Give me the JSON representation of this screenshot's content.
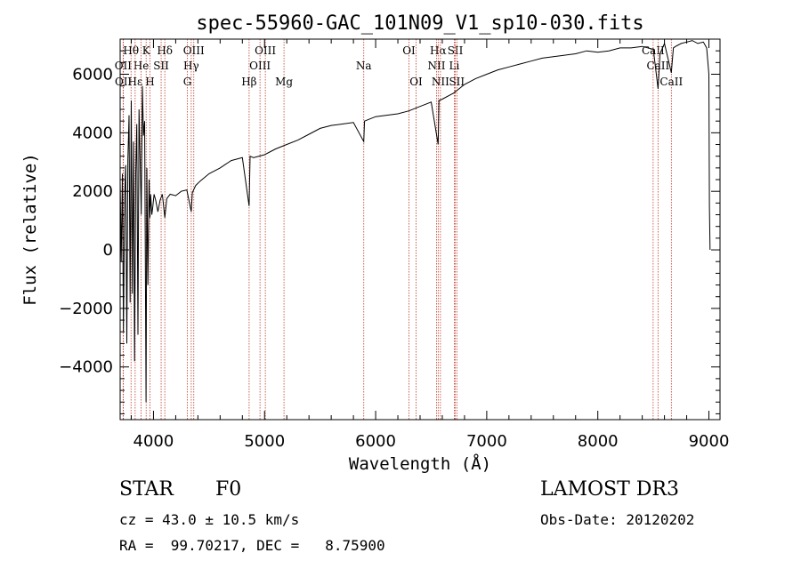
{
  "chart_data": {
    "type": "line",
    "title": "spec-55960-GAC_101N09_V1_sp10-030.fits",
    "xlabel": "Wavelength (Å)",
    "ylabel": "Flux (relative)",
    "xlim": [
      3700,
      9100
    ],
    "ylim": [
      -5800,
      7200
    ],
    "xticks": [
      4000,
      5000,
      6000,
      7000,
      8000,
      9000
    ],
    "xtick_labels": [
      "4000",
      "5000",
      "6000",
      "7000",
      "8000",
      "9000"
    ],
    "yticks": [
      -4000,
      -2000,
      0,
      2000,
      4000,
      6000
    ],
    "ytick_labels": [
      "−4000",
      "−2000",
      "0",
      "2000",
      "4000",
      "6000"
    ],
    "series": [
      {
        "name": "spectrum",
        "x": [
          3700,
          3710,
          3720,
          3730,
          3740,
          3750,
          3760,
          3770,
          3780,
          3790,
          3800,
          3810,
          3820,
          3830,
          3840,
          3850,
          3860,
          3870,
          3880,
          3890,
          3900,
          3910,
          3920,
          3933,
          3940,
          3950,
          3960,
          3968,
          3975,
          3985,
          3995,
          4005,
          4020,
          4040,
          4060,
          4080,
          4102,
          4120,
          4150,
          4200,
          4250,
          4300,
          4340,
          4350,
          4380,
          4420,
          4500,
          4600,
          4700,
          4800,
          4861,
          4870,
          4900,
          5000,
          5100,
          5200,
          5300,
          5400,
          5500,
          5600,
          5700,
          5800,
          5893,
          5900,
          6000,
          6100,
          6200,
          6300,
          6400,
          6500,
          6563,
          6570,
          6600,
          6700,
          6800,
          6900,
          7000,
          7100,
          7200,
          7300,
          7400,
          7500,
          7600,
          7700,
          7800,
          7900,
          8000,
          8100,
          8200,
          8300,
          8400,
          8500,
          8542,
          8560,
          8600,
          8662,
          8680,
          8700,
          8750,
          8800,
          8850,
          8900,
          8950,
          8980,
          9000,
          9005,
          9010
        ],
        "y": [
          2400,
          -400,
          2600,
          -2800,
          1800,
          2900,
          -3200,
          3100,
          4600,
          -1800,
          5100,
          -1500,
          3700,
          -3800,
          2600,
          4300,
          -2900,
          4800,
          3000,
          1200,
          5600,
          3900,
          4400,
          -5200,
          2800,
          -1200,
          2400,
          1100,
          1900,
          1200,
          1500,
          1900,
          1700,
          1300,
          1700,
          1900,
          1100,
          1750,
          1900,
          1850,
          2000,
          2050,
          1300,
          1950,
          2200,
          2350,
          2600,
          2800,
          3050,
          3150,
          1500,
          3200,
          3150,
          3250,
          3450,
          3600,
          3750,
          3950,
          4150,
          4250,
          4300,
          4350,
          3700,
          4400,
          4550,
          4600,
          4650,
          4750,
          4900,
          5050,
          3600,
          5100,
          5150,
          5350,
          5650,
          5850,
          6000,
          6150,
          6250,
          6350,
          6450,
          6550,
          6600,
          6650,
          6700,
          6800,
          6750,
          6800,
          6900,
          6900,
          6950,
          6850,
          5500,
          6700,
          7050,
          6050,
          6900,
          6950,
          7050,
          7100,
          7150,
          7050,
          7100,
          6900,
          6000,
          1500,
          0
        ]
      }
    ],
    "lines": [
      {
        "label": "Hθ",
        "x": 3798,
        "row": 1
      },
      {
        "label": "K",
        "x": 3934,
        "row": 1
      },
      {
        "label": "Hδ",
        "x": 4102,
        "row": 1
      },
      {
        "label": "OIII",
        "x": 4363,
        "row": 1
      },
      {
        "label": "OIII",
        "x": 5007,
        "row": 1
      },
      {
        "label": "OI",
        "x": 6300,
        "row": 1
      },
      {
        "label": "Hα",
        "x": 6563,
        "row": 1
      },
      {
        "label": "SII",
        "x": 6717,
        "row": 1
      },
      {
        "label": "CaII",
        "x": 8498,
        "row": 1
      },
      {
        "label": "OII",
        "x": 3727,
        "row": 2
      },
      {
        "label": "He",
        "x": 3889,
        "row": 2
      },
      {
        "label": "SII",
        "x": 4069,
        "row": 2
      },
      {
        "label": "Hγ",
        "x": 4340,
        "row": 2
      },
      {
        "label": "OIII",
        "x": 4959,
        "row": 2
      },
      {
        "label": "Na",
        "x": 5893,
        "row": 2
      },
      {
        "label": "NII",
        "x": 6548,
        "row": 2
      },
      {
        "label": "Li",
        "x": 6708,
        "row": 2
      },
      {
        "label": "CaII",
        "x": 8542,
        "row": 2
      },
      {
        "label": "OII",
        "x": 3729,
        "row": 3
      },
      {
        "label": "Hε",
        "x": 3835,
        "row": 3
      },
      {
        "label": "H",
        "x": 3968,
        "row": 3
      },
      {
        "label": "G",
        "x": 4305,
        "row": 3
      },
      {
        "label": "Hβ",
        "x": 4861,
        "row": 3
      },
      {
        "label": "Mg",
        "x": 5175,
        "row": 3
      },
      {
        "label": "OI",
        "x": 6364,
        "row": 3
      },
      {
        "label": "NII",
        "x": 6583,
        "row": 3
      },
      {
        "label": "SII",
        "x": 6731,
        "row": 3
      },
      {
        "label": "CaII",
        "x": 8662,
        "row": 3
      }
    ],
    "colors": {
      "spectrum": "#000000",
      "lines": "#c0392b"
    }
  },
  "info": {
    "class_label": "STAR",
    "subclass_label": "F0",
    "survey_label": "LAMOST DR3",
    "redshift_text": "cz = 43.0 ± 10.5 km/s",
    "obs_date_text": "Obs-Date: 20120202",
    "coords_text": "RA =  99.70217, DEC =   8.75900"
  }
}
